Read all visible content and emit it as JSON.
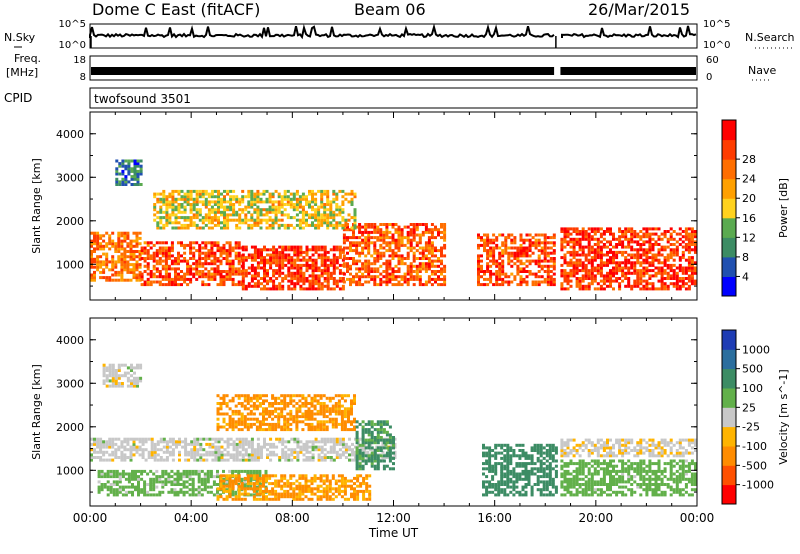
{
  "header": {
    "title": "Dome C East (fitACF)",
    "beam": "Beam 06",
    "date": "26/Mar/2015"
  },
  "panels": {
    "nsky": {
      "label": "N.Sky",
      "ticks": [
        "10^5",
        "10^0"
      ],
      "right_label": "N.Search",
      "right_ticks": [
        "10^5",
        "10^0"
      ]
    },
    "freq": {
      "label_top": "Freq.",
      "label_bottom": "[MHz]",
      "ticks": [
        "18",
        "8"
      ],
      "right_label": "Nave",
      "right_ticks": [
        "60",
        "0"
      ]
    },
    "cpid": {
      "label": "CPID",
      "program": "twofsound 3501"
    }
  },
  "chart_data": [
    {
      "type": "heatmap",
      "title": "",
      "xlabel": "Time UT",
      "ylabel": "Slant Range [km]",
      "x_ticks": [
        "00:00",
        "04:00",
        "08:00",
        "12:00",
        "16:00",
        "20:00",
        "00:00"
      ],
      "xlim_hours": [
        0,
        24
      ],
      "y_ticks": [
        1000,
        2000,
        3000,
        4000
      ],
      "ylim": [
        180,
        4500
      ],
      "colorbar": {
        "label": "Power [dB]",
        "ticks": [
          "4",
          "8",
          "12",
          "16",
          "20",
          "24",
          "28"
        ],
        "colors": [
          "#0000ff",
          "#2050b0",
          "#3c8c64",
          "#5aaa50",
          "#ffd21e",
          "#ffa000",
          "#ff6e00",
          "#ff3c00",
          "#ff0000"
        ]
      },
      "data_gap_hours": [
        [
          14.3,
          15.2
        ],
        [
          18.4,
          18.55
        ]
      ],
      "echo_bands": [
        {
          "t": [
            0.0,
            2.0
          ],
          "r": [
            600,
            1700
          ],
          "value": 24
        },
        {
          "t": [
            2.0,
            6.0
          ],
          "r": [
            500,
            1500
          ],
          "value": 27
        },
        {
          "t": [
            6.0,
            10.0
          ],
          "r": [
            400,
            1400
          ],
          "value": 28
        },
        {
          "t": [
            10.0,
            14.0
          ],
          "r": [
            500,
            1900
          ],
          "value": 26
        },
        {
          "t": [
            2.5,
            10.5
          ],
          "r": [
            1800,
            2700
          ],
          "value": 18
        },
        {
          "t": [
            1.0,
            2.0
          ],
          "r": [
            2800,
            3400
          ],
          "value": 10
        },
        {
          "t": [
            15.3,
            18.4
          ],
          "r": [
            500,
            1700
          ],
          "value": 27
        },
        {
          "t": [
            18.6,
            24.0
          ],
          "r": [
            400,
            1800
          ],
          "value": 28
        }
      ]
    },
    {
      "type": "heatmap",
      "title": "",
      "xlabel": "Time UT",
      "ylabel": "Slant Range [km]",
      "x_ticks": [
        "00:00",
        "04:00",
        "08:00",
        "12:00",
        "16:00",
        "20:00",
        "00:00"
      ],
      "xlim_hours": [
        0,
        24
      ],
      "y_ticks": [
        1000,
        2000,
        3000,
        4000
      ],
      "ylim": [
        180,
        4500
      ],
      "colorbar": {
        "label": "Velocity [m s^-1]",
        "ticks": [
          "1000",
          "500",
          "100",
          "25",
          "-25",
          "-100",
          "-500",
          "-1000"
        ],
        "colors": [
          "#1e3cb4",
          "#2b6e9e",
          "#3c8c64",
          "#62b04a",
          "#c8c8c8",
          "#ffb400",
          "#ff8c00",
          "#ff5000",
          "#ff0000"
        ]
      },
      "data_gap_hours": [
        [
          14.3,
          15.2
        ],
        [
          18.4,
          18.55
        ]
      ],
      "echo_bands": [
        {
          "t": [
            0.3,
            7.0
          ],
          "r": [
            400,
            1000
          ],
          "value": 50
        },
        {
          "t": [
            0.0,
            12.0
          ],
          "r": [
            1200,
            1700
          ],
          "value": 0
        },
        {
          "t": [
            5.0,
            10.5
          ],
          "r": [
            1900,
            2700
          ],
          "value": -150
        },
        {
          "t": [
            5.0,
            11.0
          ],
          "r": [
            300,
            900
          ],
          "value": -120
        },
        {
          "t": [
            0.5,
            2.0
          ],
          "r": [
            2900,
            3400
          ],
          "value": 0
        },
        {
          "t": [
            10.5,
            12.0
          ],
          "r": [
            1000,
            2100
          ],
          "value": 150
        },
        {
          "t": [
            15.5,
            18.4
          ],
          "r": [
            400,
            1600
          ],
          "value": 300
        },
        {
          "t": [
            18.6,
            24.0
          ],
          "r": [
            400,
            1200
          ],
          "value": 60
        },
        {
          "t": [
            18.6,
            24.0
          ],
          "r": [
            1300,
            1700
          ],
          "value": -10
        }
      ]
    }
  ]
}
